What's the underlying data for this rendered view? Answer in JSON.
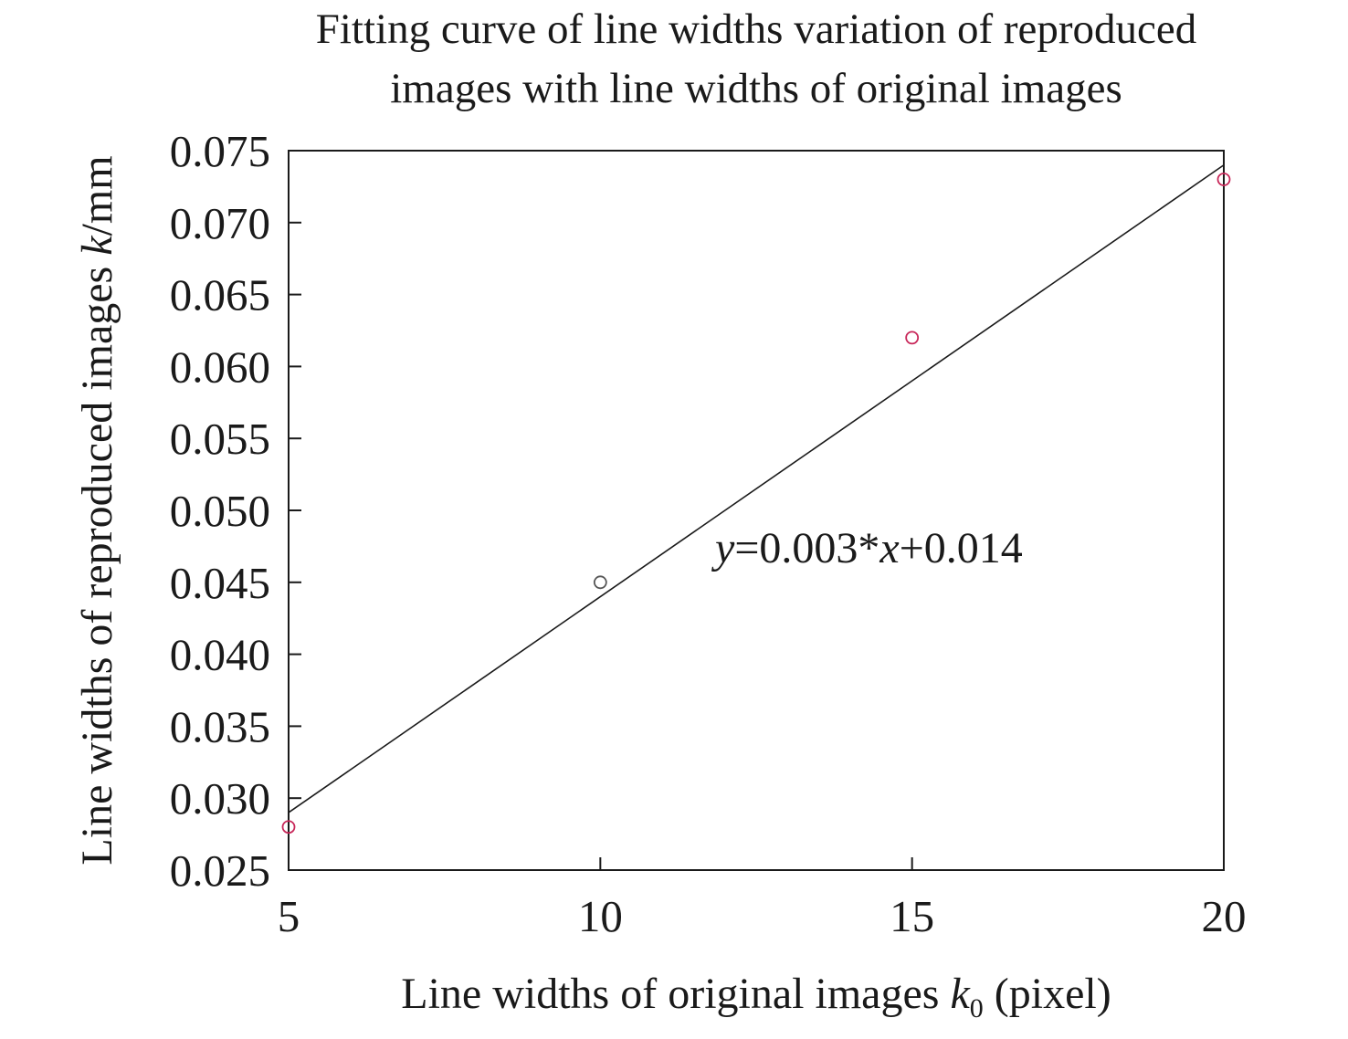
{
  "chart_data": {
    "type": "scatter",
    "title": "Fitting curve of line widths variation of reproduced images with line widths of original images",
    "title_lines": [
      "Fitting curve of line widths variation of reproduced",
      "images with line widths of original images"
    ],
    "xlabel": {
      "prefix": "Line widths of original images ",
      "var": "k",
      "sub": "0",
      "suffix": " (pixel)"
    },
    "ylabel": {
      "prefix": "Line widths of reproduced images ",
      "var": "k",
      "suffix": "/mm"
    },
    "xlim": [
      5,
      20
    ],
    "ylim": [
      0.025,
      0.075
    ],
    "x_ticks": [
      5,
      10,
      15,
      20
    ],
    "x_tick_labels": [
      "5",
      "10",
      "15",
      "20"
    ],
    "y_ticks": [
      0.025,
      0.03,
      0.035,
      0.04,
      0.045,
      0.05,
      0.055,
      0.06,
      0.065,
      0.07,
      0.075
    ],
    "y_tick_labels": [
      "0.025",
      "0.030",
      "0.035",
      "0.040",
      "0.045",
      "0.050",
      "0.055",
      "0.060",
      "0.065",
      "0.070",
      "0.075"
    ],
    "points": [
      {
        "x": 5,
        "y": 0.028,
        "color": "#c8285a"
      },
      {
        "x": 10,
        "y": 0.045,
        "color": "#555555"
      },
      {
        "x": 15,
        "y": 0.062,
        "color": "#c8285a"
      },
      {
        "x": 20,
        "y": 0.073,
        "color": "#c8285a"
      }
    ],
    "fit_line": {
      "slope": 0.003,
      "intercept": 0.014,
      "x_range": [
        5,
        20
      ],
      "color": "#1a1a1a"
    },
    "annotation": {
      "y_var": "y",
      "eq1": "=0.003*",
      "x_var": "x",
      "eq2": "+0.014"
    },
    "grid": false,
    "legend": "none"
  }
}
